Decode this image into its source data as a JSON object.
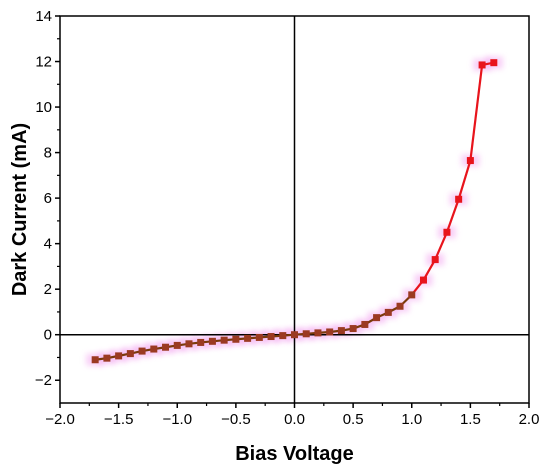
{
  "chart_data": {
    "type": "line",
    "title": "",
    "xlabel": "Bias Voltage",
    "ylabel": "Dark Current (mA)",
    "xlim": [
      -2.0,
      2.0
    ],
    "ylim": [
      -3,
      14
    ],
    "x_ticks": [
      -2.0,
      -1.5,
      -1.0,
      -0.5,
      0.0,
      0.5,
      1.0,
      1.5,
      2.0
    ],
    "x_tick_labels": [
      "−2.0",
      "−1.5",
      "−1.0",
      "−0.5",
      "0.0",
      "0.5",
      "1.0",
      "1.5",
      "2.0"
    ],
    "y_ticks": [
      -2,
      0,
      2,
      4,
      6,
      8,
      10,
      12,
      14
    ],
    "y_tick_labels": [
      "−2",
      "0",
      "2",
      "4",
      "6",
      "8",
      "10",
      "12",
      "14"
    ],
    "grid": false,
    "zero_lines": true,
    "series": [
      {
        "color": "#e8141c",
        "marker": "square",
        "x": [
          -1.7,
          -1.6,
          -1.5,
          -1.4,
          -1.3,
          -1.2,
          -1.1,
          -1.0,
          -0.9,
          -0.8,
          -0.7,
          -0.6,
          -0.5,
          -0.4,
          -0.3,
          -0.2,
          -0.1,
          0.0,
          0.1,
          0.2,
          0.3,
          0.4,
          0.5,
          0.6,
          0.7,
          0.8,
          0.9,
          1.0,
          1.1,
          1.2,
          1.3,
          1.4,
          1.5,
          1.6,
          1.7
        ],
        "y": [
          -1.1,
          -1.03,
          -0.93,
          -0.83,
          -0.72,
          -0.63,
          -0.55,
          -0.47,
          -0.4,
          -0.34,
          -0.29,
          -0.24,
          -0.2,
          -0.16,
          -0.12,
          -0.08,
          -0.04,
          0.0,
          0.04,
          0.08,
          0.12,
          0.18,
          0.27,
          0.45,
          0.75,
          0.98,
          1.25,
          1.75,
          2.4,
          3.3,
          4.5,
          5.95,
          7.65,
          11.85,
          11.95
        ]
      }
    ]
  }
}
